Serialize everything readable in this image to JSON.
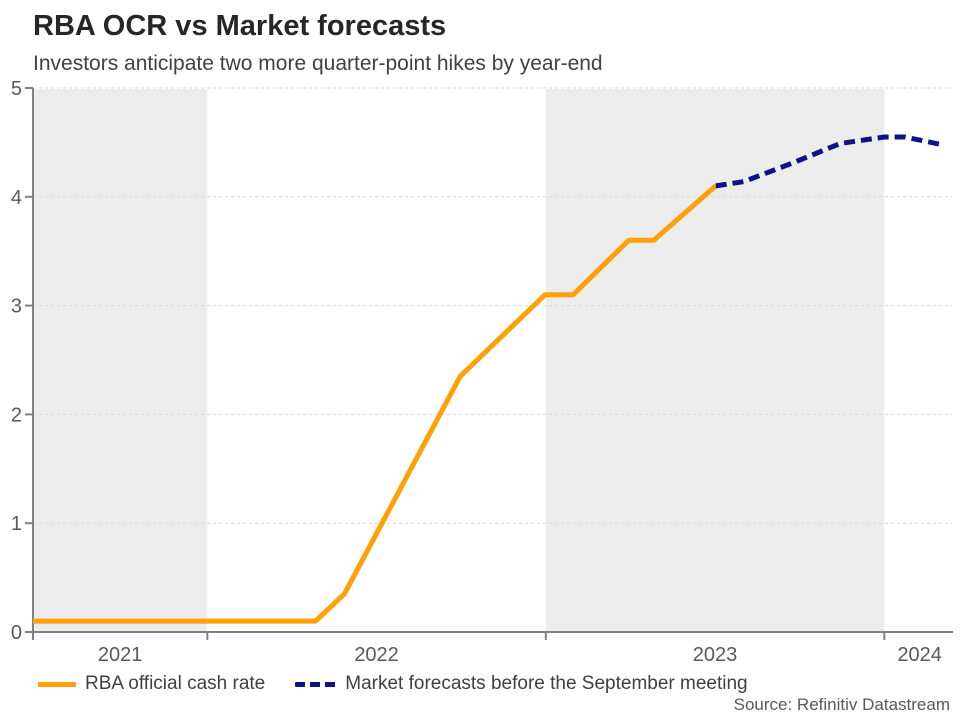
{
  "header": {
    "title": "RBA OCR vs Market forecasts",
    "subtitle": "Investors anticipate two more quarter-point hikes by year-end"
  },
  "source": "Source: Refinitiv Datastream",
  "legend": [
    {
      "label": "RBA official cash rate",
      "color": "#FFA005",
      "style": "solid"
    },
    {
      "label": "Market forecasts before the September meeting",
      "color": "#101088",
      "style": "dashed"
    }
  ],
  "chart_data": {
    "type": "line",
    "title": "RBA OCR vs Market forecasts",
    "subtitle": "Investors anticipate two more quarter-point hikes by year-end",
    "xlabel": "",
    "ylabel": "",
    "xlim": [
      2021.485,
      2024.2
    ],
    "ylim": [
      0,
      5
    ],
    "y_ticks": [
      0,
      1,
      2,
      3,
      4,
      5
    ],
    "x_ticks": [
      2021,
      2022,
      2023,
      2024
    ],
    "x_tick_labels": [
      "2021",
      "2022",
      "2023",
      "2024"
    ],
    "grid": "horizontal-dashed",
    "legend_position": "bottom",
    "band_color": "#ececec",
    "plot_bands_x": [
      [
        2021.485,
        2022.0
      ],
      [
        2023.0,
        2024.0
      ]
    ],
    "axis_color": "#808080",
    "grid_color": "#d8d8d8",
    "series": [
      {
        "name": "RBA official cash rate",
        "color": "#FFA005",
        "style": "solid",
        "points": [
          {
            "x": 2021.485,
            "y": 0.1
          },
          {
            "x": 2022.32,
            "y": 0.1
          },
          {
            "x": 2022.405,
            "y": 0.35
          },
          {
            "x": 2022.747,
            "y": 2.35
          },
          {
            "x": 2022.998,
            "y": 3.1
          },
          {
            "x": 2023.081,
            "y": 3.1
          },
          {
            "x": 2023.245,
            "y": 3.6
          },
          {
            "x": 2023.319,
            "y": 3.6
          },
          {
            "x": 2023.502,
            "y": 4.1
          }
        ]
      },
      {
        "name": "Market forecasts before the September meeting",
        "color": "#101088",
        "style": "dashed",
        "points": [
          {
            "x": 2023.502,
            "y": 4.1
          },
          {
            "x": 2023.585,
            "y": 4.14
          },
          {
            "x": 2023.72,
            "y": 4.3
          },
          {
            "x": 2023.87,
            "y": 4.49
          },
          {
            "x": 2024.0,
            "y": 4.55
          },
          {
            "x": 2024.06,
            "y": 4.55
          },
          {
            "x": 2024.17,
            "y": 4.48
          }
        ]
      }
    ]
  }
}
